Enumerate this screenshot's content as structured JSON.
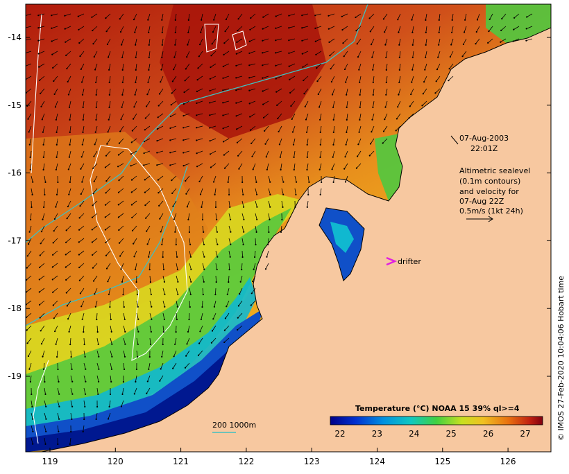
{
  "map": {
    "date_label": "07-Aug-2003",
    "time_label": "22:01Z",
    "altimetry_lines": [
      "Altimetric sealevel",
      "(0.1m contours)",
      "and velocity for",
      "07-Aug 22Z"
    ],
    "velocity_scale_label": "0.5m/s (1kt 24h)",
    "drifter_label": "drifter",
    "isobath_label": "200  1000m",
    "colorbar_title": "Temperature (°C) NOAA 15 39% ql>=4",
    "colorbar_ticks": [
      "22",
      "23",
      "24",
      "25",
      "26",
      "27"
    ],
    "x_ticks": [
      "119",
      "120",
      "121",
      "122",
      "123",
      "124",
      "125",
      "126"
    ],
    "y_ticks": [
      "-14",
      "-15",
      "-16",
      "-17",
      "-18",
      "-19"
    ],
    "credit": "© IMOS 27-Feb-2020 10:04:06 Hobart time",
    "colors": {
      "land": "#f7c8a0",
      "warm": "#c0401a",
      "hot": "#b01a0c",
      "orange": "#e8851a",
      "mid": "#f0b020",
      "yellow": "#e8e020",
      "green": "#50c840",
      "cyan": "#10b8d0",
      "blue": "#1050c8",
      "navy": "#001890",
      "isobath": "#40c0c0",
      "contour": "#ffffff",
      "drifter": "#e020e0"
    }
  }
}
